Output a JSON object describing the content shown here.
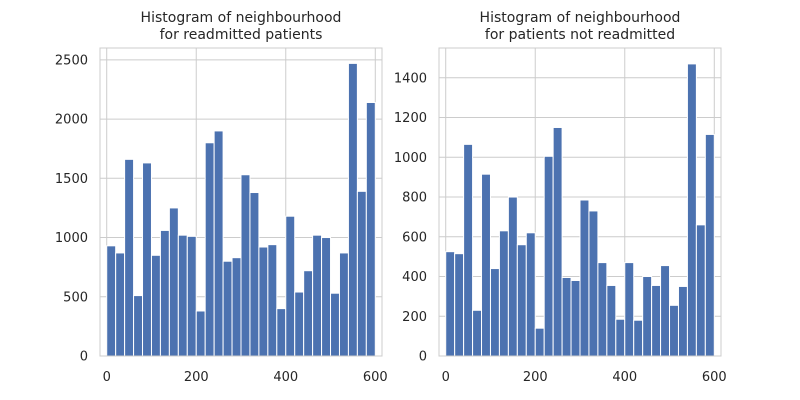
{
  "chart_data": [
    {
      "type": "bar",
      "title_lines": [
        "Histogram of neighbourhood",
        "for readmitted patients"
      ],
      "xlabel": "",
      "ylabel": "",
      "xlim": [
        -15,
        615
      ],
      "ylim": [
        0,
        2600
      ],
      "xticks": [
        0,
        200,
        400,
        600
      ],
      "yticks": [
        0,
        500,
        1000,
        1500,
        2000,
        2500
      ],
      "grid": true,
      "bin_start": 0,
      "bin_width": 20,
      "values": [
        930,
        870,
        1660,
        510,
        1630,
        850,
        1060,
        1250,
        1020,
        1010,
        380,
        1800,
        1900,
        800,
        830,
        1530,
        1380,
        920,
        940,
        400,
        1180,
        540,
        720,
        1020,
        1000,
        530,
        870,
        2470,
        1390,
        2140
      ],
      "bar_color": "#4C72B0"
    },
    {
      "type": "bar",
      "title_lines": [
        "Histogram of neighbourhood",
        "for patients not readmitted"
      ],
      "xlabel": "",
      "ylabel": "",
      "xlim": [
        -15,
        615
      ],
      "ylim": [
        0,
        1550
      ],
      "xticks": [
        0,
        200,
        400,
        600
      ],
      "yticks": [
        0,
        200,
        400,
        600,
        800,
        1000,
        1200,
        1400
      ],
      "grid": true,
      "bin_start": 0,
      "bin_width": 20,
      "values": [
        525,
        515,
        1065,
        230,
        915,
        440,
        630,
        800,
        560,
        620,
        140,
        1005,
        1150,
        395,
        380,
        785,
        730,
        470,
        355,
        185,
        470,
        180,
        400,
        355,
        455,
        255,
        350,
        1470,
        660,
        1115
      ],
      "bar_color": "#4C72B0"
    }
  ]
}
